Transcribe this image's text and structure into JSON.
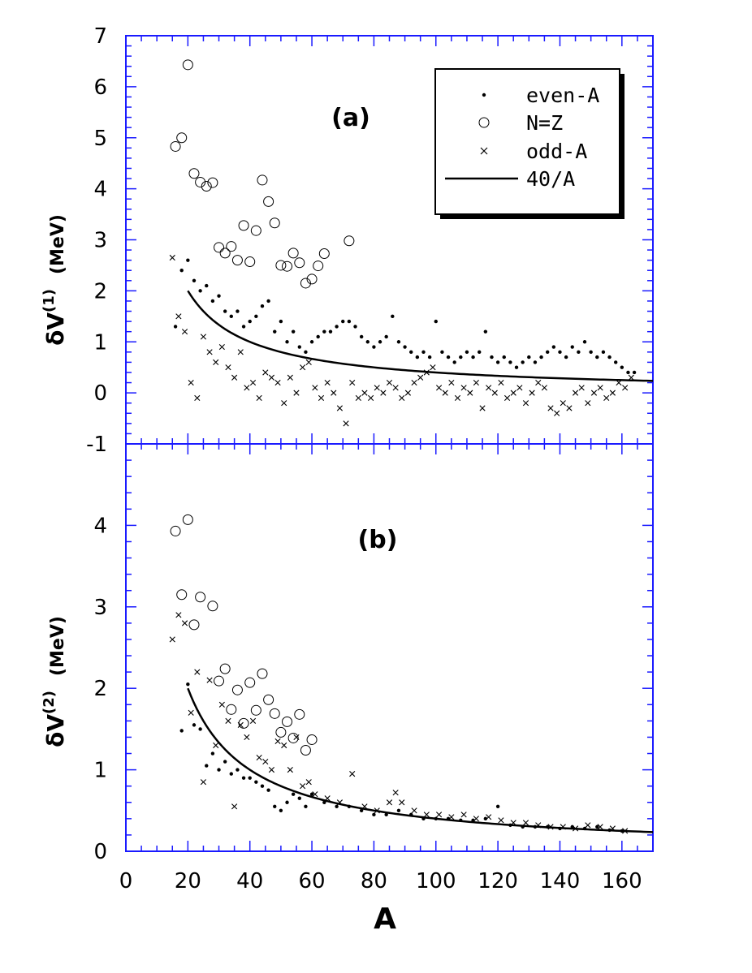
{
  "chart_data": [
    {
      "type": "scatter",
      "panel": "(a)",
      "xlabel": "A",
      "ylabel_main": "δV",
      "ylabel_sup": "(1)",
      "ylabel_unit": "(MeV)",
      "xlim": [
        0,
        170
      ],
      "ylim": [
        -1,
        7
      ],
      "x_ticks": [
        "0",
        "20",
        "40",
        "60",
        "80",
        "100",
        "120",
        "140",
        "160"
      ],
      "y_ticks": [
        "-1",
        "0",
        "1",
        "2",
        "3",
        "4",
        "5",
        "6",
        "7"
      ],
      "legend": {
        "placement": "top-right",
        "entries": [
          {
            "label": "even-A",
            "marker": "dot"
          },
          {
            "label": "N=Z",
            "marker": "open-circle"
          },
          {
            "label": "odd-A",
            "marker": "cross"
          },
          {
            "label": "40/A",
            "marker": "line"
          }
        ]
      },
      "series": [
        {
          "name": "N=Z",
          "marker": "open-circle",
          "x": [
            16,
            18,
            20,
            22,
            24,
            26,
            28,
            30,
            32,
            34,
            36,
            38,
            40,
            42,
            44,
            46,
            48,
            50,
            52,
            54,
            56,
            58,
            60,
            62,
            64,
            72
          ],
          "y": [
            4.83,
            5.0,
            6.43,
            4.3,
            4.13,
            4.05,
            4.12,
            2.85,
            2.74,
            2.87,
            2.6,
            3.28,
            2.57,
            3.18,
            4.17,
            3.75,
            3.33,
            2.5,
            2.48,
            2.74,
            2.55,
            2.15,
            2.23,
            2.49,
            2.73,
            2.98
          ]
        },
        {
          "name": "even-A",
          "marker": "dot",
          "x": [
            16,
            18,
            20,
            22,
            24,
            26,
            28,
            30,
            32,
            34,
            36,
            38,
            40,
            42,
            44,
            46,
            48,
            50,
            52,
            54,
            56,
            58,
            60,
            62,
            64,
            66,
            68,
            70,
            72,
            74,
            76,
            78,
            80,
            82,
            84,
            86,
            88,
            90,
            92,
            94,
            96,
            98,
            100,
            102,
            104,
            106,
            108,
            110,
            112,
            114,
            116,
            118,
            120,
            122,
            124,
            126,
            128,
            130,
            132,
            134,
            136,
            138,
            140,
            142,
            144,
            146,
            148,
            150,
            152,
            154,
            156,
            158,
            160,
            162,
            164
          ],
          "y": [
            1.3,
            2.4,
            2.6,
            2.2,
            2.0,
            2.1,
            1.8,
            1.9,
            1.6,
            1.5,
            1.6,
            1.3,
            1.4,
            1.5,
            1.7,
            1.8,
            1.2,
            1.4,
            1.0,
            1.2,
            0.9,
            0.8,
            1.0,
            1.1,
            1.2,
            1.2,
            1.3,
            1.4,
            1.4,
            1.3,
            1.1,
            1.0,
            0.9,
            1.0,
            1.1,
            1.5,
            1.0,
            0.9,
            0.8,
            0.7,
            0.8,
            0.7,
            1.4,
            0.8,
            0.7,
            0.6,
            0.7,
            0.8,
            0.7,
            0.8,
            1.2,
            0.7,
            0.6,
            0.7,
            0.6,
            0.5,
            0.6,
            0.7,
            0.6,
            0.7,
            0.8,
            0.9,
            0.8,
            0.7,
            0.9,
            0.8,
            1.0,
            0.8,
            0.7,
            0.8,
            0.7,
            0.6,
            0.5,
            0.4,
            0.4
          ]
        },
        {
          "name": "odd-A",
          "marker": "cross",
          "x": [
            15,
            17,
            19,
            21,
            23,
            25,
            27,
            29,
            31,
            33,
            35,
            37,
            39,
            41,
            43,
            45,
            47,
            49,
            51,
            53,
            55,
            57,
            59,
            61,
            63,
            65,
            67,
            69,
            71,
            73,
            75,
            77,
            79,
            81,
            83,
            85,
            87,
            89,
            91,
            93,
            95,
            97,
            99,
            101,
            103,
            105,
            107,
            109,
            111,
            113,
            115,
            117,
            119,
            121,
            123,
            125,
            127,
            129,
            131,
            133,
            135,
            137,
            139,
            141,
            143,
            145,
            147,
            149,
            151,
            153,
            155,
            157,
            159,
            161,
            163
          ],
          "y": [
            2.65,
            1.5,
            1.2,
            0.2,
            -0.1,
            1.1,
            0.8,
            0.6,
            0.9,
            0.5,
            0.3,
            0.8,
            0.1,
            0.2,
            -0.1,
            0.4,
            0.3,
            0.2,
            -0.2,
            0.3,
            0.0,
            0.5,
            0.6,
            0.1,
            -0.1,
            0.2,
            0.0,
            -0.3,
            -0.6,
            0.2,
            -0.1,
            0.0,
            -0.1,
            0.1,
            0.0,
            0.2,
            0.1,
            -0.1,
            0.0,
            0.2,
            0.3,
            0.4,
            0.5,
            0.1,
            0.0,
            0.2,
            -0.1,
            0.1,
            0.0,
            0.2,
            -0.3,
            0.1,
            0.0,
            0.2,
            -0.1,
            0.0,
            0.1,
            -0.2,
            0.0,
            0.2,
            0.1,
            -0.3,
            -0.4,
            -0.2,
            -0.3,
            0.0,
            0.1,
            -0.2,
            0.0,
            0.1,
            -0.1,
            0.0,
            0.2,
            0.1,
            0.3
          ]
        },
        {
          "name": "40/A",
          "marker": "line",
          "function": "40/A",
          "x_range": [
            20,
            170
          ]
        }
      ]
    },
    {
      "type": "scatter",
      "panel": "(b)",
      "xlabel": "A",
      "ylabel_main": "δV",
      "ylabel_sup": "(2)",
      "ylabel_unit": "(MeV)",
      "xlim": [
        0,
        170
      ],
      "ylim": [
        0,
        5
      ],
      "x_ticks": [
        "0",
        "20",
        "40",
        "60",
        "80",
        "100",
        "120",
        "140",
        "160"
      ],
      "y_ticks": [
        "0",
        "1",
        "2",
        "3",
        "4"
      ],
      "series": [
        {
          "name": "N=Z",
          "marker": "open-circle",
          "x": [
            16,
            18,
            20,
            22,
            24,
            28,
            30,
            32,
            34,
            36,
            38,
            40,
            42,
            44,
            46,
            48,
            50,
            52,
            54,
            56,
            58,
            60
          ],
          "y": [
            3.93,
            3.15,
            4.07,
            2.78,
            3.12,
            3.01,
            2.09,
            2.24,
            1.74,
            1.98,
            1.57,
            2.07,
            1.73,
            2.18,
            1.86,
            1.69,
            1.46,
            1.59,
            1.39,
            1.68,
            1.24,
            1.37
          ]
        },
        {
          "name": "even-A",
          "marker": "dot",
          "x": [
            18,
            20,
            22,
            24,
            26,
            28,
            30,
            32,
            34,
            36,
            38,
            40,
            42,
            44,
            46,
            48,
            50,
            52,
            54,
            56,
            58,
            60,
            64,
            68,
            72,
            76,
            80,
            84,
            88,
            92,
            96,
            100,
            104,
            108,
            112,
            116,
            120,
            124,
            128,
            132,
            136,
            140,
            144,
            148,
            152,
            156,
            160
          ],
          "y": [
            1.48,
            2.05,
            1.55,
            1.5,
            1.05,
            1.2,
            1.0,
            1.1,
            0.95,
            1.0,
            0.9,
            0.9,
            0.85,
            0.8,
            0.75,
            0.55,
            0.5,
            0.6,
            0.7,
            0.65,
            0.55,
            0.7,
            0.6,
            0.55,
            0.55,
            0.5,
            0.45,
            0.45,
            0.5,
            0.45,
            0.4,
            0.4,
            0.4,
            0.38,
            0.38,
            0.4,
            0.55,
            0.32,
            0.3,
            0.3,
            0.3,
            0.28,
            0.3,
            0.28,
            0.3,
            0.26,
            0.25
          ]
        },
        {
          "name": "odd-A",
          "marker": "cross",
          "x": [
            15,
            17,
            19,
            21,
            23,
            25,
            27,
            29,
            31,
            33,
            35,
            37,
            39,
            41,
            43,
            45,
            47,
            49,
            51,
            53,
            55,
            57,
            59,
            61,
            65,
            69,
            73,
            77,
            81,
            85,
            87,
            89,
            93,
            97,
            101,
            105,
            109,
            113,
            117,
            121,
            125,
            129,
            133,
            137,
            141,
            145,
            149,
            153,
            157,
            161
          ],
          "y": [
            2.6,
            2.9,
            2.8,
            1.7,
            2.2,
            0.85,
            2.1,
            1.3,
            1.8,
            1.6,
            0.55,
            1.55,
            1.4,
            1.6,
            1.15,
            1.1,
            1.0,
            1.35,
            1.3,
            1.0,
            1.4,
            0.8,
            0.85,
            0.7,
            0.65,
            0.6,
            0.95,
            0.55,
            0.5,
            0.6,
            0.72,
            0.6,
            0.5,
            0.45,
            0.45,
            0.42,
            0.45,
            0.4,
            0.42,
            0.38,
            0.35,
            0.35,
            0.32,
            0.3,
            0.3,
            0.28,
            0.32,
            0.3,
            0.28,
            0.25
          ]
        },
        {
          "name": "40/A",
          "marker": "line",
          "function": "40/A",
          "x_range": [
            20,
            170
          ]
        }
      ]
    }
  ]
}
